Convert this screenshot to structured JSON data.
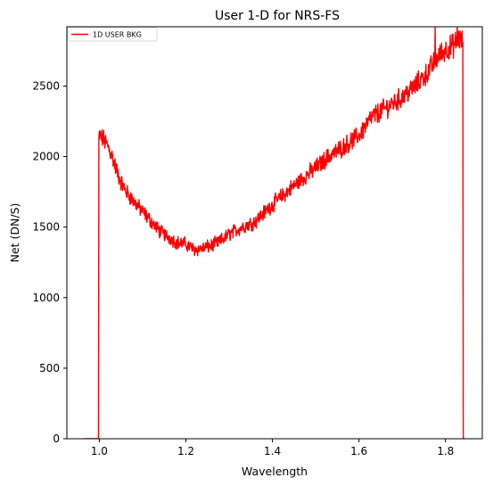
{
  "chart_data": {
    "type": "line",
    "title": "User 1-D for NRS-FS",
    "xlabel": "Wavelength",
    "ylabel": "Net (DN/S)",
    "xlim": [
      0.925,
      1.885
    ],
    "ylim": [
      0,
      2920
    ],
    "xticks": [
      1.0,
      1.2,
      1.4,
      1.6,
      1.8
    ],
    "xtick_labels": [
      "1.0",
      "1.2",
      "1.4",
      "1.6",
      "1.8"
    ],
    "yticks": [
      0,
      500,
      1000,
      1500,
      2000,
      2500
    ],
    "ytick_labels": [
      "0",
      "500",
      "1000",
      "1500",
      "2000",
      "2500"
    ],
    "grid": false,
    "legend": {
      "position": "top-left",
      "entries": [
        "1D USER BKG"
      ]
    },
    "series": [
      {
        "name": "1D USER BKG",
        "color": "#ff0000",
        "x": [
          0.965,
          0.998,
          0.999,
          1.0,
          1.01,
          1.02,
          1.03,
          1.04,
          1.05,
          1.06,
          1.08,
          1.1,
          1.12,
          1.14,
          1.16,
          1.18,
          1.2,
          1.22,
          1.24,
          1.26,
          1.28,
          1.3,
          1.33,
          1.36,
          1.38,
          1.4,
          1.43,
          1.46,
          1.5,
          1.53,
          1.56,
          1.6,
          1.63,
          1.66,
          1.7,
          1.73,
          1.76,
          1.78,
          1.8,
          1.82,
          1.83,
          1.84,
          1.841,
          1.845
        ],
        "y": [
          0,
          0,
          2100,
          2150,
          2120,
          2070,
          2000,
          1900,
          1820,
          1760,
          1680,
          1610,
          1540,
          1470,
          1430,
          1390,
          1380,
          1340,
          1350,
          1370,
          1400,
          1450,
          1500,
          1540,
          1600,
          1660,
          1740,
          1820,
          1920,
          2000,
          2060,
          2150,
          2280,
          2340,
          2420,
          2500,
          2600,
          2700,
          2760,
          2790,
          2840,
          2810,
          0,
          0
        ],
        "spikes": [
          {
            "x": 1.776,
            "y": 2920
          },
          {
            "x": 1.827,
            "y": 2920
          }
        ]
      }
    ]
  }
}
